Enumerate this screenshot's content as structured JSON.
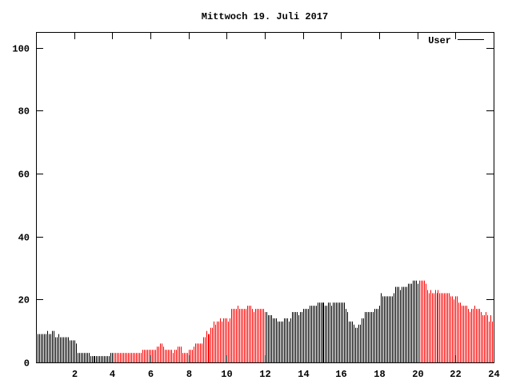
{
  "chart_data": {
    "type": "bar",
    "title": "Mittwoch 19. Juli 2017",
    "xlabel": "",
    "ylabel": "",
    "xlim": [
      0,
      24
    ],
    "ylim": [
      0,
      105
    ],
    "xticks": [
      2,
      4,
      6,
      8,
      10,
      12,
      14,
      16,
      18,
      20,
      22,
      24
    ],
    "yticks": [
      0,
      20,
      40,
      60,
      80,
      100
    ],
    "grid": false,
    "legend": {
      "position": "top-right",
      "entries": [
        {
          "name": "User",
          "color": "#000000"
        }
      ]
    },
    "color_ranges": [
      {
        "from": 0,
        "to": 4,
        "color": "#000000"
      },
      {
        "from": 4,
        "to": 12,
        "color": "#ff0000"
      },
      {
        "from": 12,
        "to": 20,
        "color": "#000000"
      },
      {
        "from": 20,
        "to": 24,
        "color": "#ff0000"
      }
    ],
    "series": [
      {
        "name": "User",
        "values": [
          9,
          9,
          9,
          9,
          9,
          9,
          10,
          9,
          9,
          10,
          10,
          8,
          8,
          9,
          8,
          8,
          8,
          8,
          8,
          8,
          7,
          7,
          7,
          7,
          6,
          3,
          3,
          3,
          3,
          3,
          3,
          3,
          3,
          2,
          2,
          2,
          2,
          2,
          2,
          2,
          2,
          2,
          2,
          2,
          2,
          2,
          3,
          3,
          3,
          3,
          3,
          3,
          3,
          3,
          3,
          3,
          3,
          3,
          3,
          3,
          3,
          3,
          3,
          3,
          3,
          3,
          4,
          4,
          4,
          4,
          4,
          4,
          4,
          4,
          4,
          5,
          5,
          6,
          6,
          5,
          4,
          4,
          4,
          4,
          4,
          3,
          4,
          4,
          5,
          5,
          5,
          3,
          3,
          3,
          3,
          4,
          4,
          4,
          5,
          6,
          6,
          6,
          6,
          6,
          8,
          8,
          10,
          9,
          9,
          11,
          11,
          13,
          12,
          13,
          13,
          14,
          13,
          14,
          14,
          14,
          13,
          14,
          17,
          17,
          17,
          17,
          18,
          17,
          17,
          17,
          17,
          17,
          18,
          18,
          18,
          17,
          16,
          17,
          17,
          17,
          17,
          17,
          17,
          16,
          16,
          15,
          15,
          15,
          14,
          14,
          14,
          13,
          13,
          13,
          13,
          14,
          14,
          14,
          13,
          14,
          16,
          16,
          16,
          16,
          15,
          16,
          16,
          17,
          17,
          17,
          17,
          18,
          18,
          18,
          18,
          18,
          19,
          19,
          19,
          19,
          19,
          18,
          18,
          19,
          19,
          18,
          19,
          19,
          19,
          19,
          19,
          19,
          19,
          19,
          17,
          16,
          13,
          13,
          13,
          12,
          11,
          11,
          12,
          12,
          14,
          14,
          16,
          16,
          16,
          16,
          16,
          16,
          17,
          17,
          17,
          18,
          22,
          21,
          21,
          21,
          21,
          21,
          21,
          21,
          22,
          24,
          24,
          24,
          23,
          24,
          24,
          24,
          24,
          25,
          25,
          25,
          26,
          26,
          26,
          25,
          26,
          26,
          26,
          26,
          25,
          23,
          22,
          23,
          22,
          22,
          23,
          22,
          23,
          22,
          22,
          22,
          22,
          22,
          22,
          22,
          21,
          21,
          20,
          21,
          21,
          19,
          19,
          18,
          18,
          18,
          18,
          17,
          16,
          17,
          17,
          18,
          17,
          17,
          17,
          16,
          15,
          15,
          16,
          15,
          13,
          15,
          13,
          13
        ]
      }
    ]
  }
}
